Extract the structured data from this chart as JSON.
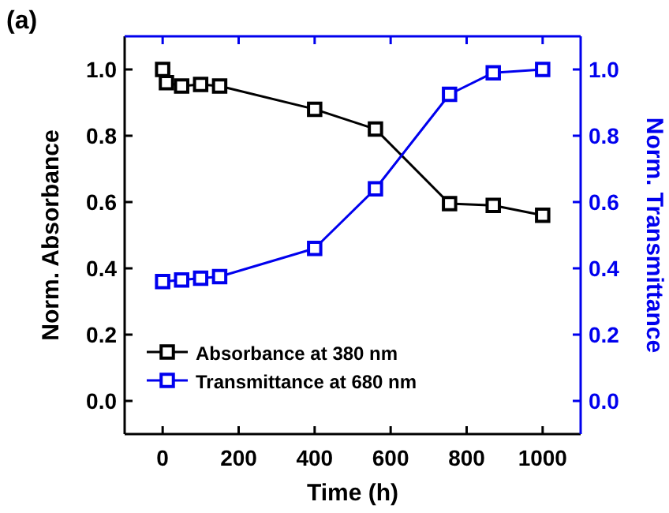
{
  "chart_data": {
    "type": "line",
    "title": "(a)",
    "xlabel": "Time (h)",
    "ylabel": "Norm. Absorbance",
    "y2label": "Norm. Transmittance",
    "xlim": [
      -100,
      1100
    ],
    "xticks": [
      0,
      200,
      400,
      600,
      800,
      1000
    ],
    "ylim": [
      -0.1,
      1.1
    ],
    "yticks": [
      {
        "value": 0,
        "label": "0.0"
      },
      0.2,
      0.4,
      0.6,
      0.8,
      {
        "value": 1,
        "label": "1.0"
      }
    ],
    "y2lim": [
      -0.1,
      1.1
    ],
    "y2ticks": [
      {
        "value": 0,
        "label": "0.0"
      },
      0.2,
      0.4,
      0.6,
      0.8,
      {
        "value": 1,
        "label": "1.0"
      }
    ],
    "marker": "square",
    "line_style": "solid",
    "grid": false,
    "legend": "bottom left",
    "series": [
      {
        "name": "Absorbance at 380 nm",
        "color": "#000000",
        "x": [
          0,
          10,
          50,
          100,
          150,
          400,
          560,
          755,
          870,
          1000
        ],
        "values": [
          1.0,
          0.96,
          0.95,
          0.955,
          0.95,
          0.88,
          0.82,
          0.595,
          0.59,
          0.56
        ]
      },
      {
        "name": "Transmittance at 680 nm",
        "color": "#0000ee",
        "axis": "y2",
        "x": [
          0,
          50,
          100,
          150,
          400,
          560,
          755,
          870,
          1000
        ],
        "values": [
          0.36,
          0.365,
          0.37,
          0.375,
          0.46,
          0.64,
          0.925,
          0.99,
          1.0
        ]
      }
    ]
  }
}
